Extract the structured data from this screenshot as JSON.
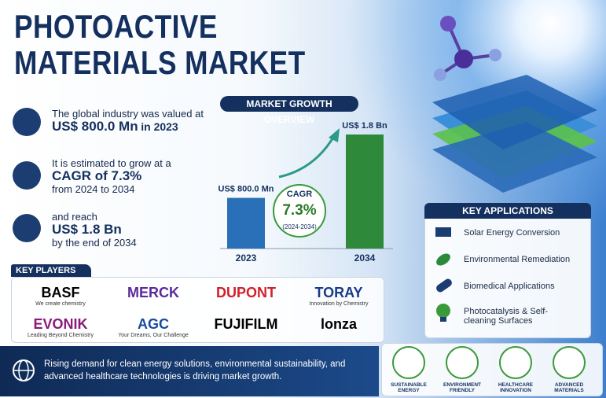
{
  "header": {
    "title_line1": "PHOTOACTIVE",
    "title_line2": "MATERIALS MARKET"
  },
  "stats": [
    {
      "text": "The global industry was valued at",
      "highlight": "US$ 800.0 Mn",
      "suffix": "in 2023"
    },
    {
      "text": "It is estimated to grow at a",
      "highlight": "CAGR of 7.3%",
      "suffix": "from 2024 to 2034"
    },
    {
      "text": "and reach",
      "highlight": "US$ 1.8 Bn",
      "suffix": "by the end of 2034"
    }
  ],
  "growth_chart": {
    "title": "MARKET GROWTH OVERVIEW",
    "bars": [
      {
        "category": "2023",
        "value": 800,
        "label": "US$ 800.0 Mn"
      },
      {
        "category": "2034",
        "value": 1800,
        "label": "US$ 1.8 Bn"
      }
    ],
    "cagr": {
      "label": "CAGR",
      "value": "7.3%",
      "period": "(2024-2034)"
    }
  },
  "key_players": {
    "title": "KEY PLAYERS",
    "companies": [
      {
        "name": "BASF",
        "tagline": "We create chemistry"
      },
      {
        "name": "MERCK"
      },
      {
        "name": "DUPONT"
      },
      {
        "name": "TORAY",
        "tagline": "Innovation by Chemistry"
      },
      {
        "name": "EVONIK",
        "tagline": "Leading Beyond Chemistry"
      },
      {
        "name": "AGC",
        "tagline": "Your Dreams, Our Challenge"
      },
      {
        "name": "FUJIFILM"
      },
      {
        "name": "lonza"
      }
    ]
  },
  "applications": {
    "title": "KEY APPLICATIONS",
    "items": [
      "Solar Energy Conversion",
      "Environmental Remediation",
      "Biomedical Applications",
      "Photocatalysis & Self-cleaning Surfaces"
    ]
  },
  "footer": {
    "text": "Rising demand for clean energy solutions, environmental sustainability, and advanced healthcare technologies is driving market growth.",
    "badges": [
      "SUSTAINABLE ENERGY",
      "ENVIRONMENT FRIENDLY",
      "HEALTHCARE INNOVATION",
      "ADVANCED MATERIALS"
    ]
  }
}
